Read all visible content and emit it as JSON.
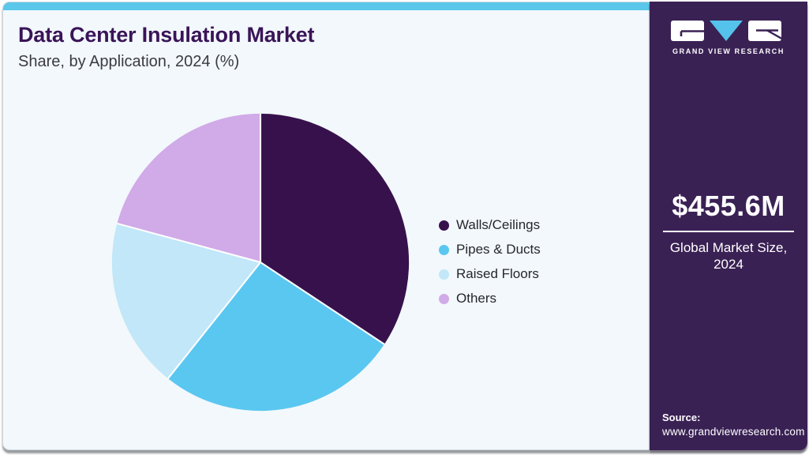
{
  "header": {
    "title": "Data Center Insulation Market",
    "subtitle": "Share, by Application, 2024 (%)"
  },
  "chart_data": {
    "type": "pie",
    "title": "Data Center Insulation Market Share, by Application, 2024 (%)",
    "unit": "%",
    "start_angle_deg": 0,
    "direction": "clockwise",
    "legend_position": "right",
    "data_labels_shown": false,
    "values_estimated_from_angles": true,
    "segments": [
      {
        "label": "Walls/Ceilings",
        "value": 34.3,
        "color": "#37114c"
      },
      {
        "label": "Pipes & Ducts",
        "value": 26.4,
        "color": "#5ac7f0"
      },
      {
        "label": "Raised Floors",
        "value": 18.5,
        "color": "#c1e7f8"
      },
      {
        "label": "Others",
        "value": 20.8,
        "color": "#d1aae8"
      }
    ],
    "separator_color": "#ffffff"
  },
  "sidebar": {
    "logo": {
      "brand": "GRAND VIEW RESEARCH",
      "triangle_color": "#54c2ea"
    },
    "market_size": {
      "value": "$455.6M",
      "caption_line1": "Global Market Size,",
      "caption_line2": "2024"
    },
    "source": {
      "label": "Source:",
      "url": "www.grandviewresearch.com"
    }
  },
  "colors": {
    "accent_bar": "#5bc7ea",
    "card_background": "#f2f8fb",
    "sidebar_background": "#3a2154",
    "title_text": "#3a1458",
    "subtitle_text": "#3b3b41",
    "legend_text": "#27272e"
  }
}
